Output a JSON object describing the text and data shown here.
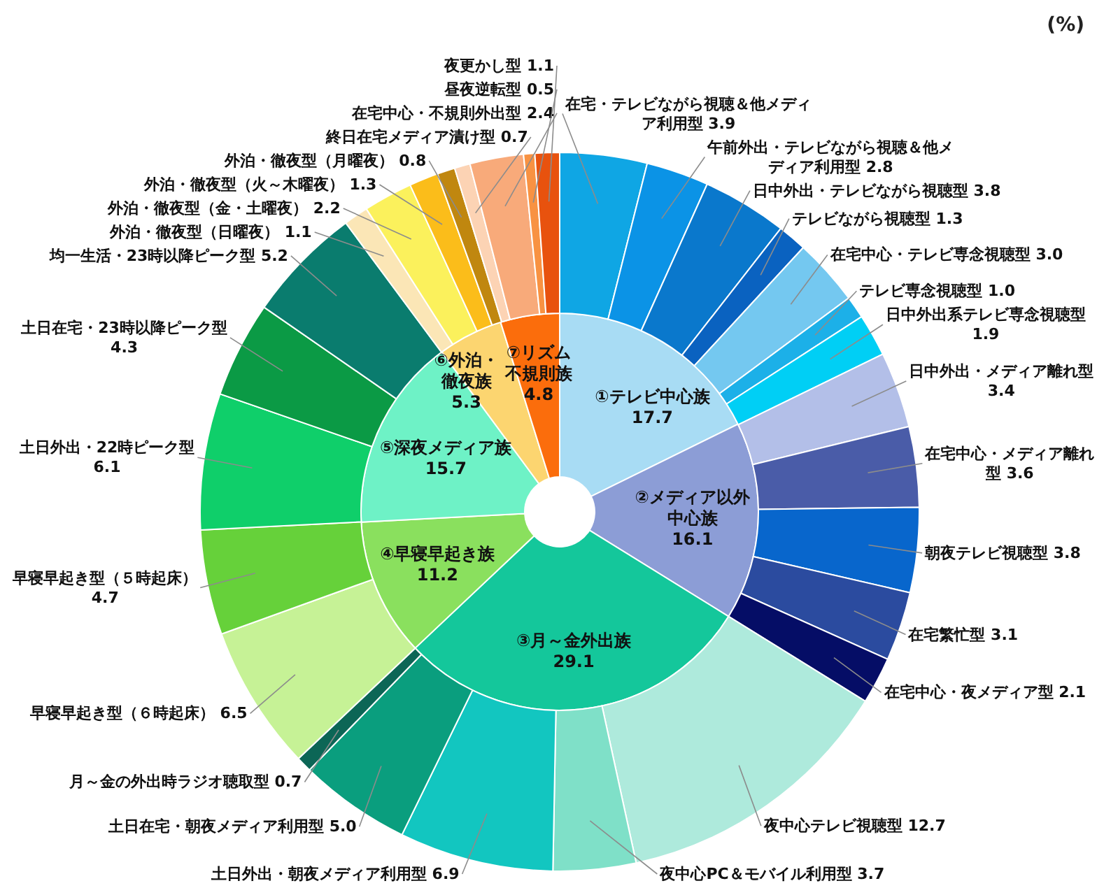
{
  "chart_data": [
    {
      "type": "donut",
      "categories": [
        "①テレビ中心族",
        "②メディア以外中心族",
        "③月～金外出族",
        "④早寝早起き族",
        "⑤深夜メディア族",
        "⑥外泊・徹夜族",
        "⑦リズム不規則族"
      ],
      "values": [
        17.7,
        16.1,
        29.1,
        11.2,
        15.7,
        5.3,
        4.8
      ],
      "colors": [
        "#a8dcf4",
        "#8c9dd6",
        "#14c79b",
        "#8ae05e",
        "#6ef2c6",
        "#fcd570",
        "#fb6d0c"
      ],
      "data_labels": true
    },
    {
      "type": "donut",
      "categories": [
        "在宅・テレビながら視聴＆他メディア利用型",
        "午前外出・テレビながら視聴＆他メディア利用型",
        "日中外出・テレビながら視聴型",
        "テレビながら視聴型",
        "在宅中心・テレビ専念視聴型",
        "テレビ専念視聴型",
        "日中外出系テレビ専念視聴型",
        "日中外出・メディア離れ型",
        "在宅中心・メディア離れ型",
        "朝夜テレビ視聴型",
        "在宅繁忙型",
        "在宅中心・夜メディア型",
        "夜中心テレビ視聴型",
        "夜中心PC＆モバイル利用型",
        "土日外出・朝夜メディア利用型",
        "土日在宅・朝夜メディア利用型",
        "月～金の外出時ラジオ聴取型",
        "早寝早起き型（６時起床）",
        "早寝早起き型（５時起床）",
        "土日外出・22時ピーク型",
        "土日在宅・23時以降ピーク型",
        "均一生活・23時以降ピーク型",
        "外泊・徹夜型（日曜夜）",
        "外泊・徹夜型（金・土曜夜）",
        "外泊・徹夜型（火～木曜夜）",
        "外泊・徹夜型（月曜夜）",
        "終日在宅メディア漬け型",
        "在宅中心・不規則外出型",
        "昼夜逆転型",
        "夜更かし型"
      ],
      "values": [
        3.9,
        2.8,
        3.8,
        1.3,
        3.0,
        1.0,
        1.9,
        3.4,
        3.6,
        3.8,
        3.1,
        2.1,
        12.7,
        3.7,
        6.9,
        5.0,
        0.7,
        6.5,
        4.7,
        6.1,
        4.3,
        5.2,
        1.1,
        2.2,
        1.3,
        0.8,
        0.7,
        2.4,
        0.5,
        1.1
      ],
      "value_labels": [
        "3.9",
        "2.8",
        "3.8",
        "1.3",
        "3.0",
        "1.0",
        "1.9",
        "3.4",
        "3.6",
        "3.8",
        "3.1",
        "2.1",
        "12.7",
        "3.7",
        "6.9",
        "5.0",
        "0.7",
        "6.5",
        "4.7",
        "6.1",
        "4.3",
        "5.2",
        "1.1",
        "2.2",
        "1.3",
        "0.8",
        "0.7",
        "2.4",
        "0.5",
        "1.1"
      ],
      "colors": [
        "#0fa6e4",
        "#0b93e6",
        "#0a78cc",
        "#0a62c0",
        "#74c8f0",
        "#1cb0e8",
        "#00cff5",
        "#b3bfe8",
        "#4a5ca8",
        "#0866cc",
        "#2b4b9f",
        "#050d66",
        "#aeeadc",
        "#7fe0c8",
        "#12c6c0",
        "#0a9e7e",
        "#0c6656",
        "#c6f296",
        "#66d13a",
        "#0fcf6a",
        "#0b9a45",
        "#0a7c6e",
        "#fbe6b6",
        "#fbf15c",
        "#fbbd1a",
        "#c0870f",
        "#fcd3b4",
        "#f8aa7a",
        "#f89242",
        "#e8520e"
      ],
      "annotations": [
        "(%)"
      ]
    }
  ]
}
